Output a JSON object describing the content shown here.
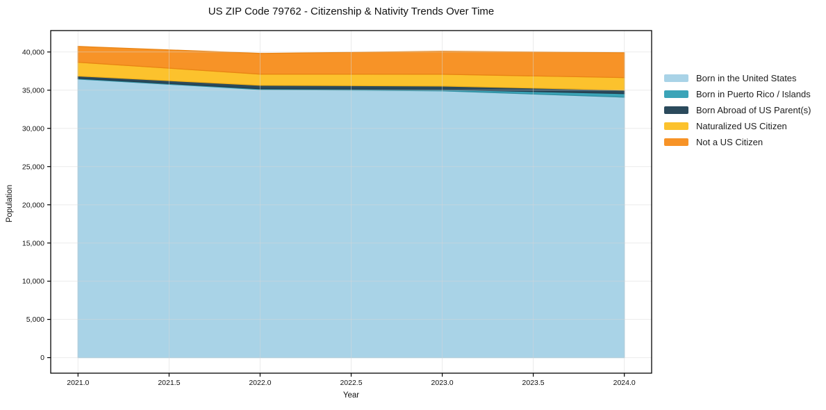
{
  "chart_data": {
    "type": "area",
    "stacked": true,
    "title": "US ZIP Code 79762 - Citizenship & Nativity Trends Over Time",
    "xlabel": "Year",
    "ylabel": "Population",
    "x": [
      2021,
      2022,
      2023,
      2024
    ],
    "series": [
      {
        "name": "Born in the United States",
        "color": "#a9d3e7",
        "edge": "#95c6de",
        "values": [
          36450,
          35090,
          34910,
          34090
        ]
      },
      {
        "name": "Born in Puerto Rico / Islands",
        "color": "#3ba4b8",
        "edge": "#318fa1",
        "values": [
          100,
          100,
          180,
          460
        ]
      },
      {
        "name": "Born Abroad of US Parent(s)",
        "color": "#2b4a5c",
        "edge": "#223d4d",
        "values": [
          300,
          450,
          455,
          455
        ]
      },
      {
        "name": "Naturalized US Citizen",
        "color": "#fcc22d",
        "edge": "#efb01b",
        "values": [
          1800,
          1460,
          1545,
          1640
        ]
      },
      {
        "name": "Not a US Citizen",
        "color": "#f79327",
        "edge": "#e98414",
        "values": [
          2080,
          2720,
          3000,
          3260
        ]
      }
    ],
    "xticks": [
      2021.0,
      2021.5,
      2022.0,
      2022.5,
      2023.0,
      2023.5,
      2024.0
    ],
    "yticks": [
      0,
      5000,
      10000,
      15000,
      20000,
      25000,
      30000,
      35000,
      40000
    ],
    "xlim": [
      2020.85,
      2024.15
    ],
    "ylim": [
      -2040,
      42800
    ],
    "grid": true,
    "grid_color": "#d8d8d8",
    "spine_color": "#000000",
    "background_color": "#ffffff",
    "legend_position": "right-outside"
  }
}
